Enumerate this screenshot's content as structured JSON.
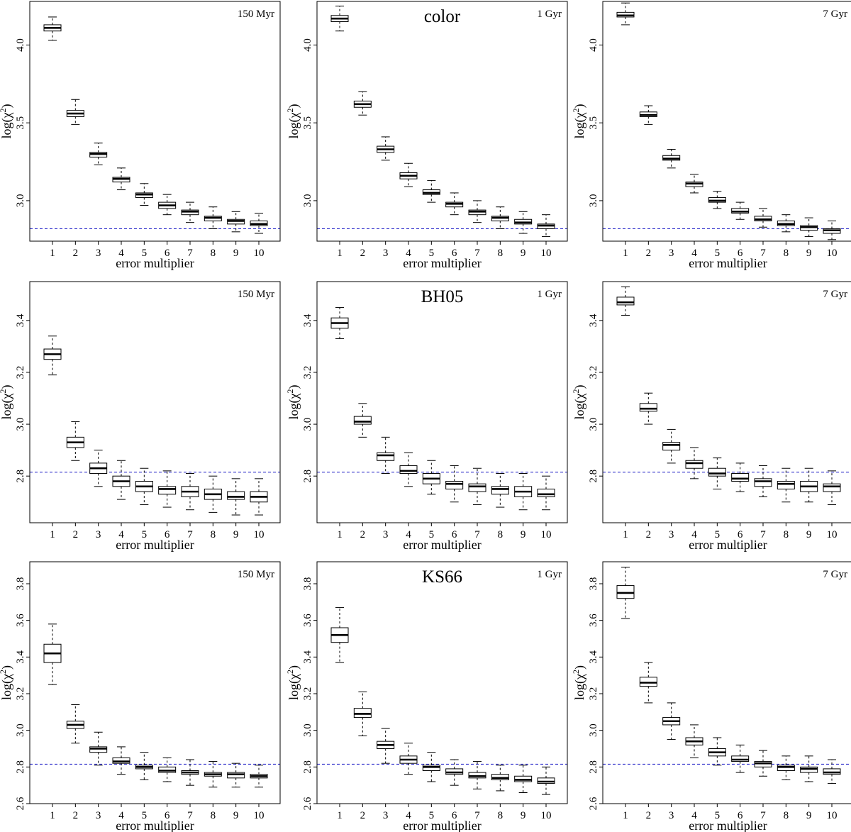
{
  "figure": {
    "row_titles": [
      "color",
      "BH05",
      "KS66"
    ],
    "column_labels": [
      "150 Myr",
      "1 Gyr",
      "7 Gyr"
    ],
    "x_axis_title": "error multiplier",
    "y_axis_title_base": "log(χ",
    "y_axis_title_sup": "2",
    "y_axis_title_end": ")",
    "colors": {
      "box": "#000000",
      "reference_line": "#3333cc"
    }
  },
  "chart_data": [
    {
      "type": "box",
      "title": "",
      "corner_label": "150 Myr",
      "xlabel": "error multiplier",
      "ylabel": "log(χ2)",
      "categories": [
        "1",
        "2",
        "3",
        "4",
        "5",
        "6",
        "7",
        "8",
        "9",
        "10"
      ],
      "ylim": [
        2.74,
        4.28
      ],
      "yticks": [
        3.0,
        3.5,
        4.0
      ],
      "reference_line": 2.82,
      "boxes": [
        {
          "low": 4.03,
          "q1": 4.09,
          "median": 4.11,
          "q3": 4.13,
          "high": 4.18
        },
        {
          "low": 3.49,
          "q1": 3.54,
          "median": 3.56,
          "q3": 3.58,
          "high": 3.65
        },
        {
          "low": 3.23,
          "q1": 3.28,
          "median": 3.3,
          "q3": 3.31,
          "high": 3.37
        },
        {
          "low": 3.07,
          "q1": 3.12,
          "median": 3.14,
          "q3": 3.15,
          "high": 3.21
        },
        {
          "low": 2.97,
          "q1": 3.02,
          "median": 3.04,
          "q3": 3.05,
          "high": 3.11
        },
        {
          "low": 2.91,
          "q1": 2.95,
          "median": 2.97,
          "q3": 2.99,
          "high": 3.04
        },
        {
          "low": 2.86,
          "q1": 2.91,
          "median": 2.93,
          "q3": 2.94,
          "high": 2.99
        },
        {
          "low": 2.82,
          "q1": 2.87,
          "median": 2.89,
          "q3": 2.9,
          "high": 2.96
        },
        {
          "low": 2.8,
          "q1": 2.85,
          "median": 2.87,
          "q3": 2.88,
          "high": 2.93
        },
        {
          "low": 2.79,
          "q1": 2.84,
          "median": 2.85,
          "q3": 2.87,
          "high": 2.92
        }
      ]
    },
    {
      "type": "box",
      "title": "color",
      "corner_label": "1 Gyr",
      "xlabel": "error multiplier",
      "ylabel": "log(χ2)",
      "categories": [
        "1",
        "2",
        "3",
        "4",
        "5",
        "6",
        "7",
        "8",
        "9",
        "10"
      ],
      "ylim": [
        2.74,
        4.28
      ],
      "yticks": [
        3.0,
        3.5,
        4.0
      ],
      "reference_line": 2.82,
      "boxes": [
        {
          "low": 4.09,
          "q1": 4.15,
          "median": 4.17,
          "q3": 4.19,
          "high": 4.25
        },
        {
          "low": 3.55,
          "q1": 3.6,
          "median": 3.62,
          "q3": 3.64,
          "high": 3.7
        },
        {
          "low": 3.26,
          "q1": 3.31,
          "median": 3.33,
          "q3": 3.35,
          "high": 3.41
        },
        {
          "low": 3.09,
          "q1": 3.14,
          "median": 3.16,
          "q3": 3.18,
          "high": 3.24
        },
        {
          "low": 2.99,
          "q1": 3.04,
          "median": 3.05,
          "q3": 3.07,
          "high": 3.13
        },
        {
          "low": 2.91,
          "q1": 2.96,
          "median": 2.98,
          "q3": 2.99,
          "high": 3.05
        },
        {
          "low": 2.86,
          "q1": 2.91,
          "median": 2.93,
          "q3": 2.94,
          "high": 3.0
        },
        {
          "low": 2.82,
          "q1": 2.87,
          "median": 2.89,
          "q3": 2.9,
          "high": 2.96
        },
        {
          "low": 2.79,
          "q1": 2.85,
          "median": 2.86,
          "q3": 2.88,
          "high": 2.93
        },
        {
          "low": 2.77,
          "q1": 2.82,
          "median": 2.84,
          "q3": 2.85,
          "high": 2.91
        }
      ]
    },
    {
      "type": "box",
      "title": "",
      "corner_label": "7 Gyr",
      "xlabel": "error multiplier",
      "ylabel": "log(χ2)",
      "categories": [
        "1",
        "2",
        "3",
        "4",
        "5",
        "6",
        "7",
        "8",
        "9",
        "10"
      ],
      "ylim": [
        2.74,
        4.28
      ],
      "yticks": [
        3.0,
        3.5,
        4.0
      ],
      "reference_line": 2.82,
      "boxes": [
        {
          "low": 4.13,
          "q1": 4.18,
          "median": 4.19,
          "q3": 4.21,
          "high": 4.27
        },
        {
          "low": 3.49,
          "q1": 3.54,
          "median": 3.55,
          "q3": 3.57,
          "high": 3.61
        },
        {
          "low": 3.21,
          "q1": 3.26,
          "median": 3.27,
          "q3": 3.29,
          "high": 3.33
        },
        {
          "low": 3.05,
          "q1": 3.09,
          "median": 3.11,
          "q3": 3.12,
          "high": 3.17
        },
        {
          "low": 2.95,
          "q1": 2.99,
          "median": 3.0,
          "q3": 3.02,
          "high": 3.06
        },
        {
          "low": 2.88,
          "q1": 2.92,
          "median": 2.93,
          "q3": 2.95,
          "high": 2.99
        },
        {
          "low": 2.83,
          "q1": 2.87,
          "median": 2.88,
          "q3": 2.9,
          "high": 2.95
        },
        {
          "low": 2.8,
          "q1": 2.84,
          "median": 2.85,
          "q3": 2.87,
          "high": 2.91
        },
        {
          "low": 2.77,
          "q1": 2.81,
          "median": 2.83,
          "q3": 2.84,
          "high": 2.89
        },
        {
          "low": 2.75,
          "q1": 2.79,
          "median": 2.81,
          "q3": 2.82,
          "high": 2.87
        }
      ]
    },
    {
      "type": "box",
      "title": "",
      "corner_label": "150 Myr",
      "xlabel": "error multiplier",
      "ylabel": "log(χ2)",
      "categories": [
        "1",
        "2",
        "3",
        "4",
        "5",
        "6",
        "7",
        "8",
        "9",
        "10"
      ],
      "ylim": [
        2.62,
        3.55
      ],
      "yticks": [
        2.8,
        3.0,
        3.2,
        3.4
      ],
      "reference_line": 2.815,
      "boxes": [
        {
          "low": 3.19,
          "q1": 3.25,
          "median": 3.27,
          "q3": 3.29,
          "high": 3.34
        },
        {
          "low": 2.86,
          "q1": 2.91,
          "median": 2.93,
          "q3": 2.95,
          "high": 3.01
        },
        {
          "low": 2.76,
          "q1": 2.81,
          "median": 2.83,
          "q3": 2.85,
          "high": 2.9
        },
        {
          "low": 2.71,
          "q1": 2.76,
          "median": 2.78,
          "q3": 2.8,
          "high": 2.86
        },
        {
          "low": 2.69,
          "q1": 2.74,
          "median": 2.76,
          "q3": 2.78,
          "high": 2.83
        },
        {
          "low": 2.68,
          "q1": 2.73,
          "median": 2.75,
          "q3": 2.76,
          "high": 2.82
        },
        {
          "low": 2.67,
          "q1": 2.72,
          "median": 2.74,
          "q3": 2.76,
          "high": 2.81
        },
        {
          "low": 2.66,
          "q1": 2.71,
          "median": 2.73,
          "q3": 2.75,
          "high": 2.8
        },
        {
          "low": 2.65,
          "q1": 2.71,
          "median": 2.72,
          "q3": 2.74,
          "high": 2.79
        },
        {
          "low": 2.65,
          "q1": 2.7,
          "median": 2.72,
          "q3": 2.74,
          "high": 2.79
        }
      ]
    },
    {
      "type": "box",
      "title": "BH05",
      "corner_label": "1 Gyr",
      "xlabel": "error multiplier",
      "ylabel": "log(χ2)",
      "categories": [
        "1",
        "2",
        "3",
        "4",
        "5",
        "6",
        "7",
        "8",
        "9",
        "10"
      ],
      "ylim": [
        2.62,
        3.55
      ],
      "yticks": [
        2.8,
        3.0,
        3.2,
        3.4
      ],
      "reference_line": 2.815,
      "boxes": [
        {
          "low": 3.33,
          "q1": 3.37,
          "median": 3.39,
          "q3": 3.41,
          "high": 3.45
        },
        {
          "low": 2.95,
          "q1": 3.0,
          "median": 3.01,
          "q3": 3.03,
          "high": 3.08
        },
        {
          "low": 2.81,
          "q1": 2.86,
          "median": 2.88,
          "q3": 2.89,
          "high": 2.95
        },
        {
          "low": 2.76,
          "q1": 2.81,
          "median": 2.82,
          "q3": 2.84,
          "high": 2.89
        },
        {
          "low": 2.73,
          "q1": 2.77,
          "median": 2.79,
          "q3": 2.81,
          "high": 2.86
        },
        {
          "low": 2.7,
          "q1": 2.75,
          "median": 2.77,
          "q3": 2.78,
          "high": 2.84
        },
        {
          "low": 2.69,
          "q1": 2.74,
          "median": 2.76,
          "q3": 2.77,
          "high": 2.83
        },
        {
          "low": 2.68,
          "q1": 2.73,
          "median": 2.75,
          "q3": 2.76,
          "high": 2.81
        },
        {
          "low": 2.67,
          "q1": 2.72,
          "median": 2.74,
          "q3": 2.76,
          "high": 2.81
        },
        {
          "low": 2.67,
          "q1": 2.72,
          "median": 2.73,
          "q3": 2.75,
          "high": 2.8
        }
      ]
    },
    {
      "type": "box",
      "title": "",
      "corner_label": "7 Gyr",
      "xlabel": "error multiplier",
      "ylabel": "log(χ2)",
      "categories": [
        "1",
        "2",
        "3",
        "4",
        "5",
        "6",
        "7",
        "8",
        "9",
        "10"
      ],
      "ylim": [
        2.62,
        3.55
      ],
      "yticks": [
        2.8,
        3.0,
        3.2,
        3.4
      ],
      "reference_line": 2.815,
      "boxes": [
        {
          "low": 3.42,
          "q1": 3.46,
          "median": 3.47,
          "q3": 3.49,
          "high": 3.53
        },
        {
          "low": 3.0,
          "q1": 3.05,
          "median": 3.06,
          "q3": 3.08,
          "high": 3.12
        },
        {
          "low": 2.85,
          "q1": 2.9,
          "median": 2.92,
          "q3": 2.93,
          "high": 2.98
        },
        {
          "low": 2.79,
          "q1": 2.83,
          "median": 2.85,
          "q3": 2.86,
          "high": 2.91
        },
        {
          "low": 2.75,
          "q1": 2.8,
          "median": 2.81,
          "q3": 2.83,
          "high": 2.87
        },
        {
          "low": 2.74,
          "q1": 2.78,
          "median": 2.79,
          "q3": 2.81,
          "high": 2.85
        },
        {
          "low": 2.72,
          "q1": 2.76,
          "median": 2.78,
          "q3": 2.79,
          "high": 2.84
        },
        {
          "low": 2.7,
          "q1": 2.75,
          "median": 2.77,
          "q3": 2.78,
          "high": 2.83
        },
        {
          "low": 2.7,
          "q1": 2.74,
          "median": 2.76,
          "q3": 2.78,
          "high": 2.83
        },
        {
          "low": 2.69,
          "q1": 2.74,
          "median": 2.76,
          "q3": 2.77,
          "high": 2.82
        }
      ]
    },
    {
      "type": "box",
      "title": "",
      "corner_label": "150 Myr",
      "xlabel": "error multiplier",
      "ylabel": "log(χ2)",
      "categories": [
        "1",
        "2",
        "3",
        "4",
        "5",
        "6",
        "7",
        "8",
        "9",
        "10"
      ],
      "ylim": [
        2.6,
        3.92
      ],
      "yticks": [
        2.6,
        2.8,
        3.0,
        3.2,
        3.4,
        3.6,
        3.8
      ],
      "reference_line": 2.815,
      "boxes": [
        {
          "low": 3.25,
          "q1": 3.37,
          "median": 3.42,
          "q3": 3.47,
          "high": 3.58
        },
        {
          "low": 2.93,
          "q1": 3.01,
          "median": 3.03,
          "q3": 3.05,
          "high": 3.14
        },
        {
          "low": 2.81,
          "q1": 2.88,
          "median": 2.9,
          "q3": 2.91,
          "high": 2.99
        },
        {
          "low": 2.76,
          "q1": 2.82,
          "median": 2.83,
          "q3": 2.85,
          "high": 2.91
        },
        {
          "low": 2.73,
          "q1": 2.79,
          "median": 2.8,
          "q3": 2.81,
          "high": 2.88
        },
        {
          "low": 2.72,
          "q1": 2.77,
          "median": 2.78,
          "q3": 2.8,
          "high": 2.85
        },
        {
          "low": 2.7,
          "q1": 2.76,
          "median": 2.77,
          "q3": 2.78,
          "high": 2.84
        },
        {
          "low": 2.69,
          "q1": 2.75,
          "median": 2.76,
          "q3": 2.77,
          "high": 2.83
        },
        {
          "low": 2.69,
          "q1": 2.74,
          "median": 2.76,
          "q3": 2.77,
          "high": 2.82
        },
        {
          "low": 2.69,
          "q1": 2.74,
          "median": 2.75,
          "q3": 2.76,
          "high": 2.81
        }
      ]
    },
    {
      "type": "box",
      "title": "KS66",
      "corner_label": "1 Gyr",
      "xlabel": "error multiplier",
      "ylabel": "log(χ2)",
      "categories": [
        "1",
        "2",
        "3",
        "4",
        "5",
        "6",
        "7",
        "8",
        "9",
        "10"
      ],
      "ylim": [
        2.6,
        3.92
      ],
      "yticks": [
        2.6,
        2.8,
        3.0,
        3.2,
        3.4,
        3.6,
        3.8
      ],
      "reference_line": 2.815,
      "boxes": [
        {
          "low": 3.37,
          "q1": 3.48,
          "median": 3.52,
          "q3": 3.56,
          "high": 3.67
        },
        {
          "low": 2.97,
          "q1": 3.07,
          "median": 3.09,
          "q3": 3.12,
          "high": 3.21
        },
        {
          "low": 2.82,
          "q1": 2.9,
          "median": 2.92,
          "q3": 2.94,
          "high": 3.01
        },
        {
          "low": 2.76,
          "q1": 2.82,
          "median": 2.84,
          "q3": 2.86,
          "high": 2.93
        },
        {
          "low": 2.72,
          "q1": 2.78,
          "median": 2.8,
          "q3": 2.81,
          "high": 2.88
        },
        {
          "low": 2.7,
          "q1": 2.76,
          "median": 2.77,
          "q3": 2.79,
          "high": 2.84
        },
        {
          "low": 2.68,
          "q1": 2.74,
          "median": 2.75,
          "q3": 2.77,
          "high": 2.83
        },
        {
          "low": 2.67,
          "q1": 2.73,
          "median": 2.74,
          "q3": 2.76,
          "high": 2.81
        },
        {
          "low": 2.66,
          "q1": 2.72,
          "median": 2.73,
          "q3": 2.75,
          "high": 2.81
        },
        {
          "low": 2.65,
          "q1": 2.71,
          "median": 2.72,
          "q3": 2.74,
          "high": 2.8
        }
      ]
    },
    {
      "type": "box",
      "title": "",
      "corner_label": "7 Gyr",
      "xlabel": "error multiplier",
      "ylabel": "log(χ2)",
      "categories": [
        "1",
        "2",
        "3",
        "4",
        "5",
        "6",
        "7",
        "8",
        "9",
        "10"
      ],
      "ylim": [
        2.6,
        3.92
      ],
      "yticks": [
        2.6,
        2.8,
        3.0,
        3.2,
        3.4,
        3.6,
        3.8
      ],
      "reference_line": 2.815,
      "boxes": [
        {
          "low": 3.61,
          "q1": 3.72,
          "median": 3.75,
          "q3": 3.79,
          "high": 3.89
        },
        {
          "low": 3.15,
          "q1": 3.24,
          "median": 3.26,
          "q3": 3.29,
          "high": 3.37
        },
        {
          "low": 2.95,
          "q1": 3.03,
          "median": 3.05,
          "q3": 3.07,
          "high": 3.15
        },
        {
          "low": 2.85,
          "q1": 2.92,
          "median": 2.94,
          "q3": 2.96,
          "high": 3.03
        },
        {
          "low": 2.81,
          "q1": 2.86,
          "median": 2.88,
          "q3": 2.9,
          "high": 2.96
        },
        {
          "low": 2.77,
          "q1": 2.83,
          "median": 2.84,
          "q3": 2.86,
          "high": 2.92
        },
        {
          "low": 2.75,
          "q1": 2.8,
          "median": 2.82,
          "q3": 2.83,
          "high": 2.89
        },
        {
          "low": 2.73,
          "q1": 2.78,
          "median": 2.8,
          "q3": 2.81,
          "high": 2.86
        },
        {
          "low": 2.72,
          "q1": 2.77,
          "median": 2.79,
          "q3": 2.8,
          "high": 2.86
        },
        {
          "low": 2.71,
          "q1": 2.76,
          "median": 2.77,
          "q3": 2.79,
          "high": 2.84
        }
      ]
    }
  ]
}
